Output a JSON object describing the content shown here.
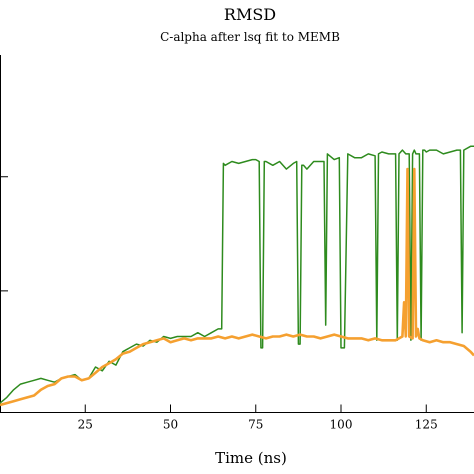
{
  "chart_data": {
    "type": "line",
    "title": "RMSD",
    "subtitle": "C-alpha after lsq fit to MEMB",
    "xlabel": "Time (ns)",
    "ylabel": "",
    "xlim": [
      0,
      139
    ],
    "ylim": [
      0,
      0.92
    ],
    "x_ticks": [
      25,
      50,
      75,
      100,
      125
    ],
    "x_tick_labels": [
      "25",
      "50",
      "75",
      "100",
      "125"
    ],
    "y_ticks": [
      0.3,
      0.6
    ],
    "grid": false,
    "series": [
      {
        "color": "#2e8b1e",
        "x": [
          0,
          2,
          4,
          6,
          8,
          10,
          12,
          14,
          16,
          18,
          20,
          22,
          24,
          26,
          28,
          30,
          32,
          34,
          36,
          38,
          40,
          42,
          44,
          46,
          48,
          50,
          52,
          54,
          56,
          58,
          60,
          62,
          64,
          65,
          65.5,
          66,
          68,
          70,
          72,
          74,
          75,
          76,
          76.5,
          77,
          77.5,
          78,
          80,
          82,
          84,
          86,
          87,
          87.5,
          88,
          88.5,
          89,
          90,
          92,
          94,
          95,
          95.5,
          96,
          98,
          99.5,
          100,
          101,
          102,
          104,
          106,
          108,
          110,
          110.5,
          111,
          112,
          114,
          116,
          116.5,
          117,
          118,
          119,
          120,
          120.5,
          121,
          121.5,
          122,
          123,
          123.5,
          124,
          124.5,
          125,
          126,
          128,
          130,
          132,
          134,
          135,
          135.5,
          136,
          138,
          139
        ],
        "y": [
          0.005,
          0.02,
          0.04,
          0.055,
          0.06,
          0.065,
          0.07,
          0.065,
          0.06,
          0.07,
          0.075,
          0.08,
          0.065,
          0.07,
          0.1,
          0.09,
          0.115,
          0.105,
          0.14,
          0.15,
          0.16,
          0.155,
          0.17,
          0.165,
          0.18,
          0.175,
          0.18,
          0.18,
          0.18,
          0.19,
          0.18,
          0.19,
          0.2,
          0.2,
          0.635,
          0.63,
          0.64,
          0.635,
          0.64,
          0.645,
          0.645,
          0.64,
          0.15,
          0.15,
          0.64,
          0.64,
          0.63,
          0.64,
          0.62,
          0.635,
          0.64,
          0.16,
          0.16,
          0.63,
          0.63,
          0.62,
          0.64,
          0.64,
          0.64,
          0.21,
          0.66,
          0.645,
          0.65,
          0.15,
          0.15,
          0.66,
          0.65,
          0.65,
          0.66,
          0.655,
          0.17,
          0.66,
          0.665,
          0.66,
          0.66,
          0.17,
          0.66,
          0.67,
          0.66,
          0.66,
          0.17,
          0.66,
          0.67,
          0.66,
          0.66,
          0.17,
          0.67,
          0.67,
          0.665,
          0.67,
          0.67,
          0.66,
          0.665,
          0.67,
          0.67,
          0.19,
          0.67,
          0.68,
          0.68
        ]
      },
      {
        "color": "#f5a030",
        "x": [
          0,
          2,
          4,
          6,
          8,
          10,
          12,
          14,
          16,
          18,
          20,
          22,
          24,
          26,
          28,
          30,
          32,
          34,
          36,
          38,
          40,
          42,
          44,
          46,
          48,
          50,
          52,
          54,
          56,
          58,
          60,
          62,
          64,
          66,
          68,
          70,
          72,
          74,
          76,
          78,
          80,
          82,
          84,
          86,
          88,
          90,
          92,
          94,
          96,
          98,
          100,
          102,
          104,
          106,
          108,
          110,
          112,
          114,
          116,
          117,
          118,
          118.5,
          119,
          119.5,
          120,
          121,
          121.5,
          122,
          122.5,
          123,
          124,
          126,
          128,
          130,
          132,
          134,
          136,
          138,
          139
        ],
        "y": [
          0.0,
          0.005,
          0.01,
          0.015,
          0.02,
          0.025,
          0.04,
          0.05,
          0.055,
          0.07,
          0.075,
          0.075,
          0.065,
          0.07,
          0.085,
          0.1,
          0.11,
          0.12,
          0.135,
          0.14,
          0.15,
          0.16,
          0.165,
          0.17,
          0.175,
          0.165,
          0.17,
          0.175,
          0.17,
          0.175,
          0.175,
          0.175,
          0.18,
          0.175,
          0.18,
          0.175,
          0.18,
          0.185,
          0.18,
          0.175,
          0.18,
          0.18,
          0.185,
          0.18,
          0.185,
          0.18,
          0.18,
          0.175,
          0.18,
          0.185,
          0.18,
          0.175,
          0.175,
          0.175,
          0.17,
          0.175,
          0.17,
          0.17,
          0.17,
          0.175,
          0.18,
          0.27,
          0.18,
          0.62,
          0.18,
          0.175,
          0.62,
          0.18,
          0.2,
          0.175,
          0.17,
          0.165,
          0.17,
          0.165,
          0.165,
          0.16,
          0.155,
          0.14,
          0.13
        ]
      }
    ]
  }
}
